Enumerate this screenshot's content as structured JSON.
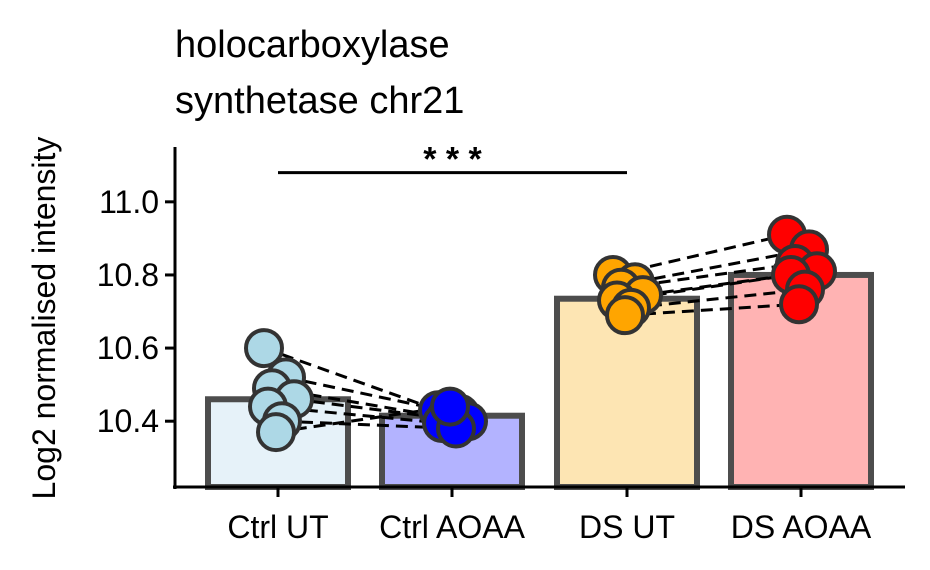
{
  "chart_data": {
    "type": "bar",
    "title_lines": [
      "holocarboxylase",
      "synthetase chr21"
    ],
    "xlabel": "",
    "ylabel": "Log2 normalised intensity",
    "ylim": [
      10.22,
      11.15
    ],
    "yticks": [
      10.4,
      10.6,
      10.8,
      11.0
    ],
    "ytick_labels": [
      "10.4",
      "10.6",
      "10.8",
      "11.0"
    ],
    "grid": false,
    "categories": [
      "Ctrl UT",
      "Ctrl AOAA",
      "DS UT",
      "DS AOAA"
    ],
    "values": [
      10.46,
      10.415,
      10.735,
      10.8
    ],
    "colors": {
      "bar_fills": [
        "#e6f2f9",
        "#b3b3ff",
        "#fde5b3",
        "#ffb3b3"
      ],
      "point_fills": [
        "#add8e6",
        "#0000ff",
        "#ffa500",
        "#ff0000"
      ],
      "outline": "#4d4d4d",
      "dash": "#000000"
    },
    "points": [
      [
        10.6,
        10.52,
        10.49,
        10.46,
        10.44,
        10.4,
        10.37
      ],
      [
        10.43,
        10.42,
        10.41,
        10.4,
        10.395,
        10.38,
        10.44
      ],
      [
        10.8,
        10.78,
        10.765,
        10.745,
        10.73,
        10.71,
        10.69
      ],
      [
        10.91,
        10.87,
        10.83,
        10.81,
        10.8,
        10.76,
        10.72
      ]
    ],
    "pairs": [
      [
        0,
        1
      ],
      [
        2,
        3
      ]
    ],
    "significance": {
      "from": 0,
      "to": 2,
      "y": 11.08,
      "label": "* * *"
    }
  }
}
